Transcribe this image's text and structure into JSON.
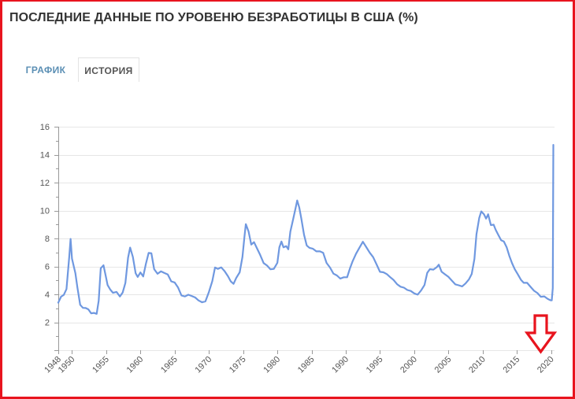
{
  "page": {
    "title": "ПОСЛЕДНИЕ ДАННЫЕ ПО УРОВЕНЮ БЕЗРАБОТИЦЫ В США (%)"
  },
  "tabs": [
    {
      "label": "ГРАФИК",
      "active": true
    },
    {
      "label": "ИСТОРИЯ",
      "active": false
    }
  ],
  "annotation": {
    "icon": "down-arrow-icon",
    "color": "#e8141e"
  },
  "colors": {
    "line": "#6f98e0",
    "grid": "#e6e6e6",
    "axis": "#999999",
    "frame": "#e8141e"
  },
  "chart_data": {
    "type": "line",
    "title": "",
    "xlabel": "",
    "ylabel": "",
    "xlim": [
      1948,
      2020.5
    ],
    "ylim": [
      0,
      16
    ],
    "yticks": [
      2,
      4,
      6,
      8,
      10,
      12,
      14,
      16
    ],
    "xticks": [
      1948,
      1950,
      1955,
      1960,
      1965,
      1970,
      1975,
      1980,
      1985,
      1990,
      1995,
      2000,
      2005,
      2010,
      2015,
      2020
    ],
    "grid": true,
    "legend": "none",
    "series": [
      {
        "points": [
          [
            1948.0,
            3.4
          ],
          [
            1948.4,
            3.8
          ],
          [
            1948.8,
            3.9
          ],
          [
            1949.2,
            4.3
          ],
          [
            1949.6,
            6.6
          ],
          [
            1949.8,
            7.9
          ],
          [
            1950.0,
            6.5
          ],
          [
            1950.5,
            5.5
          ],
          [
            1950.8,
            4.5
          ],
          [
            1951.2,
            3.3
          ],
          [
            1951.6,
            3.1
          ],
          [
            1952.0,
            3.1
          ],
          [
            1952.4,
            3.0
          ],
          [
            1952.8,
            2.7
          ],
          [
            1953.2,
            2.7
          ],
          [
            1953.6,
            2.6
          ],
          [
            1953.9,
            3.5
          ],
          [
            1954.2,
            5.8
          ],
          [
            1954.6,
            6.0
          ],
          [
            1954.9,
            5.3
          ],
          [
            1955.2,
            4.6
          ],
          [
            1955.6,
            4.3
          ],
          [
            1956.0,
            4.1
          ],
          [
            1956.5,
            4.2
          ],
          [
            1957.0,
            3.9
          ],
          [
            1957.4,
            4.2
          ],
          [
            1957.8,
            4.9
          ],
          [
            1958.2,
            6.7
          ],
          [
            1958.5,
            7.4
          ],
          [
            1958.9,
            6.7
          ],
          [
            1959.3,
            5.5
          ],
          [
            1959.6,
            5.2
          ],
          [
            1960.0,
            5.5
          ],
          [
            1960.4,
            5.2
          ],
          [
            1960.8,
            6.1
          ],
          [
            1961.2,
            6.9
          ],
          [
            1961.6,
            6.9
          ],
          [
            1962.0,
            5.8
          ],
          [
            1962.5,
            5.5
          ],
          [
            1963.0,
            5.7
          ],
          [
            1963.5,
            5.6
          ],
          [
            1964.0,
            5.5
          ],
          [
            1964.5,
            5.0
          ],
          [
            1965.0,
            4.9
          ],
          [
            1965.5,
            4.5
          ],
          [
            1966.0,
            3.9
          ],
          [
            1966.5,
            3.8
          ],
          [
            1967.0,
            3.9
          ],
          [
            1967.5,
            3.8
          ],
          [
            1968.0,
            3.7
          ],
          [
            1968.5,
            3.5
          ],
          [
            1969.0,
            3.4
          ],
          [
            1969.5,
            3.5
          ],
          [
            1970.0,
            4.2
          ],
          [
            1970.5,
            5.0
          ],
          [
            1970.9,
            6.0
          ],
          [
            1971.3,
            5.9
          ],
          [
            1971.8,
            6.0
          ],
          [
            1972.3,
            5.7
          ],
          [
            1972.8,
            5.3
          ],
          [
            1973.2,
            4.9
          ],
          [
            1973.6,
            4.7
          ],
          [
            1974.0,
            5.1
          ],
          [
            1974.5,
            5.5
          ],
          [
            1974.9,
            6.6
          ],
          [
            1975.2,
            8.1
          ],
          [
            1975.4,
            9.0
          ],
          [
            1975.8,
            8.5
          ],
          [
            1976.2,
            7.6
          ],
          [
            1976.6,
            7.8
          ],
          [
            1977.0,
            7.4
          ],
          [
            1977.5,
            6.9
          ],
          [
            1978.0,
            6.3
          ],
          [
            1978.5,
            6.1
          ],
          [
            1979.0,
            5.8
          ],
          [
            1979.5,
            5.8
          ],
          [
            1980.0,
            6.2
          ],
          [
            1980.3,
            7.3
          ],
          [
            1980.6,
            7.7
          ],
          [
            1980.9,
            7.3
          ],
          [
            1981.3,
            7.4
          ],
          [
            1981.6,
            7.2
          ],
          [
            1981.9,
            8.5
          ],
          [
            1982.3,
            9.4
          ],
          [
            1982.7,
            10.3
          ],
          [
            1982.9,
            10.8
          ],
          [
            1983.2,
            10.3
          ],
          [
            1983.5,
            9.5
          ],
          [
            1983.9,
            8.3
          ],
          [
            1984.3,
            7.5
          ],
          [
            1984.7,
            7.3
          ],
          [
            1985.2,
            7.2
          ],
          [
            1985.7,
            7.0
          ],
          [
            1986.2,
            7.0
          ],
          [
            1986.7,
            6.9
          ],
          [
            1987.2,
            6.2
          ],
          [
            1987.7,
            5.9
          ],
          [
            1988.2,
            5.5
          ],
          [
            1988.7,
            5.4
          ],
          [
            1989.2,
            5.2
          ],
          [
            1989.7,
            5.3
          ],
          [
            1990.2,
            5.3
          ],
          [
            1990.6,
            5.9
          ],
          [
            1991.0,
            6.4
          ],
          [
            1991.5,
            6.9
          ],
          [
            1992.0,
            7.3
          ],
          [
            1992.5,
            7.7
          ],
          [
            1993.0,
            7.3
          ],
          [
            1993.5,
            6.9
          ],
          [
            1994.0,
            6.6
          ],
          [
            1994.5,
            6.1
          ],
          [
            1995.0,
            5.6
          ],
          [
            1995.5,
            5.6
          ],
          [
            1996.0,
            5.5
          ],
          [
            1996.5,
            5.3
          ],
          [
            1997.0,
            5.1
          ],
          [
            1997.5,
            4.8
          ],
          [
            1998.0,
            4.6
          ],
          [
            1998.5,
            4.5
          ],
          [
            1999.0,
            4.3
          ],
          [
            1999.5,
            4.2
          ],
          [
            2000.0,
            4.0
          ],
          [
            2000.5,
            3.9
          ],
          [
            2001.0,
            4.2
          ],
          [
            2001.5,
            4.6
          ],
          [
            2001.9,
            5.5
          ],
          [
            2002.3,
            5.8
          ],
          [
            2002.8,
            5.8
          ],
          [
            2003.3,
            6.0
          ],
          [
            2003.6,
            6.2
          ],
          [
            2004.0,
            5.7
          ],
          [
            2004.5,
            5.5
          ],
          [
            2005.0,
            5.3
          ],
          [
            2005.5,
            5.0
          ],
          [
            2006.0,
            4.7
          ],
          [
            2006.5,
            4.6
          ],
          [
            2007.0,
            4.5
          ],
          [
            2007.5,
            4.7
          ],
          [
            2008.0,
            5.0
          ],
          [
            2008.4,
            5.4
          ],
          [
            2008.8,
            6.5
          ],
          [
            2009.1,
            8.3
          ],
          [
            2009.5,
            9.5
          ],
          [
            2009.8,
            10.0
          ],
          [
            2010.2,
            9.8
          ],
          [
            2010.5,
            9.5
          ],
          [
            2010.8,
            9.8
          ],
          [
            2011.2,
            9.0
          ],
          [
            2011.6,
            9.0
          ],
          [
            2011.9,
            8.6
          ],
          [
            2012.3,
            8.2
          ],
          [
            2012.7,
            7.8
          ],
          [
            2013.1,
            7.7
          ],
          [
            2013.5,
            7.3
          ],
          [
            2013.9,
            6.7
          ],
          [
            2014.3,
            6.2
          ],
          [
            2014.7,
            5.8
          ],
          [
            2015.1,
            5.5
          ],
          [
            2015.6,
            5.1
          ],
          [
            2016.0,
            4.9
          ],
          [
            2016.5,
            4.9
          ],
          [
            2017.0,
            4.6
          ],
          [
            2017.5,
            4.3
          ],
          [
            2018.0,
            4.1
          ],
          [
            2018.5,
            3.8
          ],
          [
            2019.0,
            3.8
          ],
          [
            2019.5,
            3.6
          ],
          [
            2019.9,
            3.5
          ],
          [
            2020.1,
            3.5
          ],
          [
            2020.25,
            4.4
          ],
          [
            2020.33,
            14.7
          ]
        ]
      }
    ]
  }
}
